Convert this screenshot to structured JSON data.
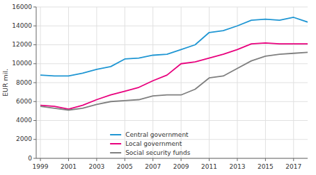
{
  "chart_data": {
    "type": "line",
    "ylabel": "EUR mil.",
    "x": [
      1999,
      2000,
      2001,
      2002,
      2003,
      2004,
      2005,
      2006,
      2007,
      2008,
      2009,
      2010,
      2011,
      2012,
      2013,
      2014,
      2015,
      2016,
      2017,
      2018
    ],
    "series": [
      {
        "name": "Central government",
        "color": "#1f96d3",
        "values": [
          8800,
          8700,
          8700,
          9000,
          9400,
          9700,
          10500,
          10600,
          10900,
          11000,
          11500,
          12000,
          13300,
          13500,
          14000,
          14600,
          14700,
          14600,
          14900,
          14400
        ]
      },
      {
        "name": "Local government",
        "color": "#e8007d",
        "values": [
          5600,
          5500,
          5200,
          5600,
          6200,
          6700,
          7100,
          7500,
          8200,
          8800,
          10000,
          10200,
          10600,
          11000,
          11500,
          12100,
          12200,
          12100,
          12100,
          12100
        ]
      },
      {
        "name": "Social security funds",
        "color": "#7f7f7f",
        "values": [
          5500,
          5300,
          5100,
          5300,
          5700,
          6000,
          6100,
          6200,
          6600,
          6700,
          6700,
          7300,
          8500,
          8700,
          9500,
          10300,
          10800,
          11000,
          11100,
          11200
        ]
      }
    ],
    "xlim": [
      1998.7,
      2018
    ],
    "xticks": [
      1999,
      2001,
      2003,
      2005,
      2007,
      2009,
      2011,
      2013,
      2015,
      2017
    ],
    "ylim": [
      0,
      16000
    ],
    "yticks": [
      0,
      2000,
      4000,
      6000,
      8000,
      10000,
      12000,
      14000,
      16000
    ],
    "grid": true,
    "legend": "lower center"
  }
}
